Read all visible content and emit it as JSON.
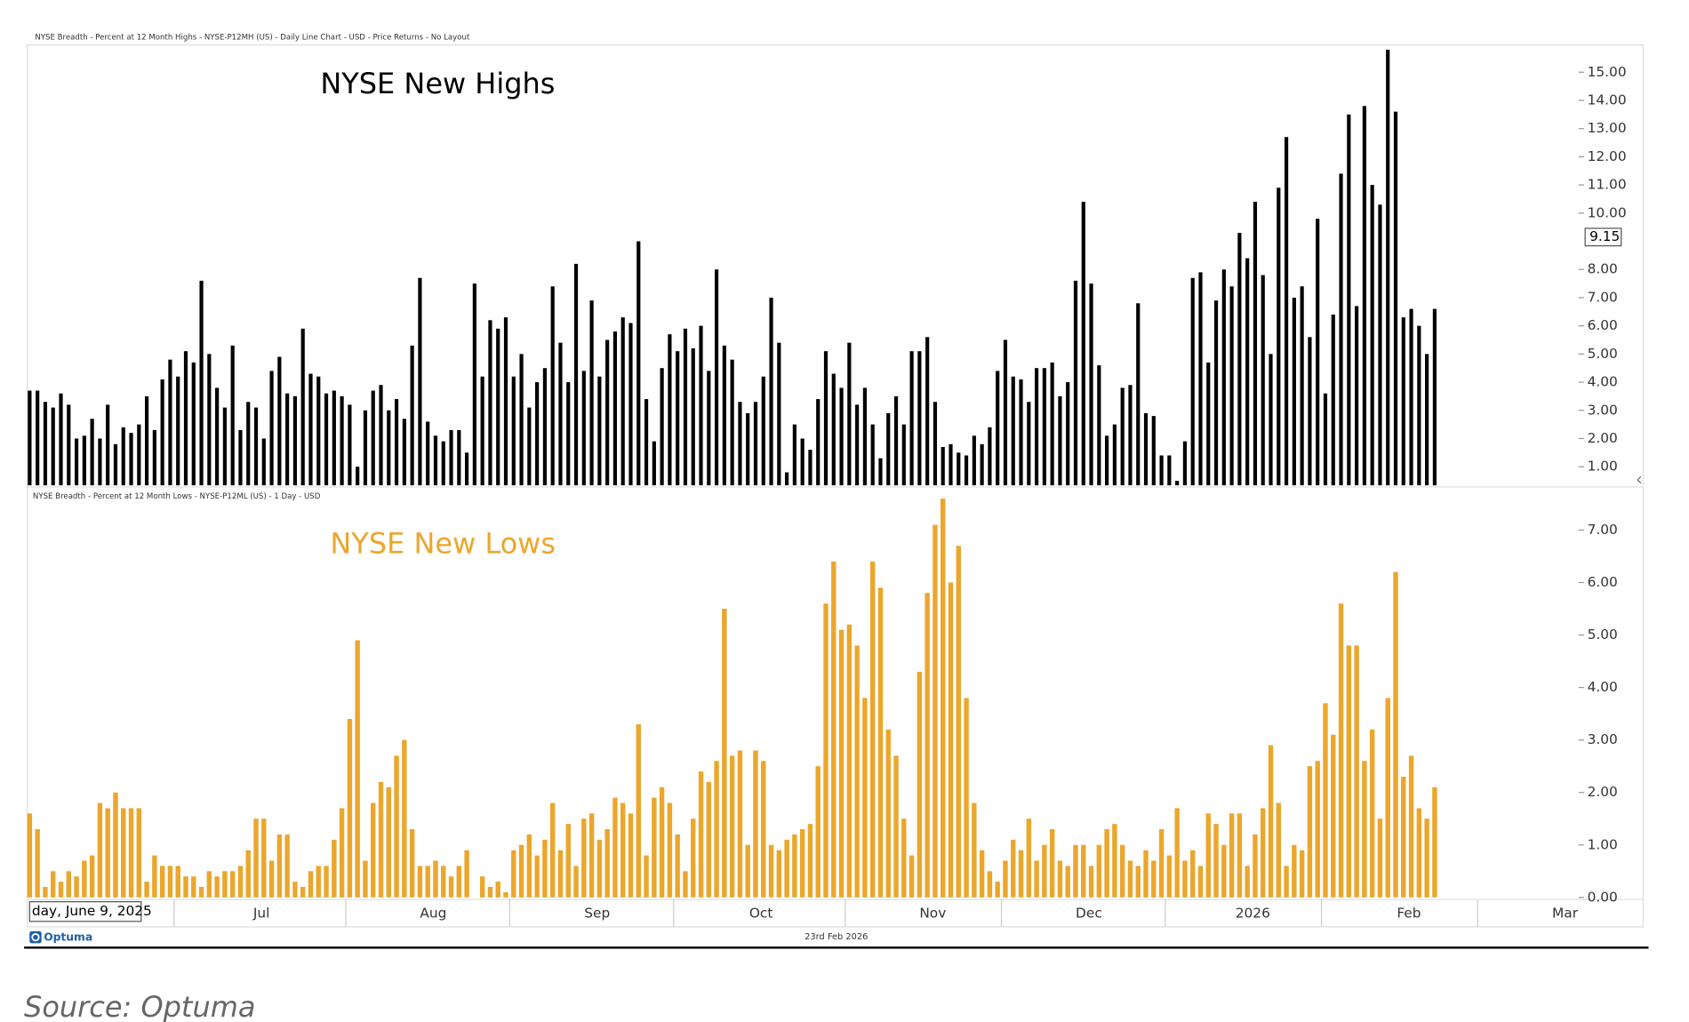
{
  "header": "NYSE Breadth - Percent at 12 Month Highs - NYSE-P12MH (US) - Daily Line Chart - USD - Price Returns - No Layout",
  "chart_data": [
    {
      "type": "bar",
      "title": "NYSE New Highs",
      "color": "#000000",
      "values": [
        3.7,
        3.7,
        3.3,
        3.1,
        3.6,
        3.2,
        2.0,
        2.1,
        2.7,
        2.0,
        3.2,
        1.8,
        2.4,
        2.2,
        2.5,
        3.5,
        2.3,
        4.1,
        4.8,
        4.2,
        5.1,
        4.7,
        7.6,
        5.0,
        3.8,
        3.1,
        5.3,
        2.3,
        3.3,
        3.1,
        2.0,
        4.4,
        4.9,
        3.6,
        3.5,
        5.9,
        4.3,
        4.2,
        3.6,
        3.7,
        3.5,
        3.2,
        1.0,
        3.0,
        3.7,
        3.9,
        3.0,
        3.4,
        2.7,
        5.3,
        7.7,
        2.6,
        2.1,
        1.9,
        2.3,
        2.3,
        1.5,
        7.5,
        4.2,
        6.2,
        5.9,
        6.3,
        4.2,
        5.0,
        3.1,
        4.0,
        4.5,
        7.4,
        5.4,
        4.0,
        8.2,
        4.4,
        6.9,
        4.2,
        5.5,
        5.8,
        6.3,
        6.1,
        9.0,
        3.4,
        1.9,
        4.5,
        5.7,
        5.1,
        5.9,
        5.2,
        6.0,
        4.4,
        8.0,
        5.3,
        4.8,
        3.3,
        2.9,
        3.3,
        4.2,
        7.0,
        5.4,
        0.8,
        2.5,
        2.0,
        1.6,
        3.4,
        5.1,
        4.3,
        3.8,
        5.4,
        3.2,
        3.8,
        2.5,
        1.3,
        2.9,
        3.5,
        2.5,
        5.1,
        5.1,
        5.6,
        3.3,
        1.7,
        1.8,
        1.5,
        1.4,
        2.1,
        1.8,
        2.4,
        4.4,
        5.5,
        4.2,
        4.1,
        3.3,
        4.5,
        4.5,
        4.7,
        3.5,
        4.0,
        7.6,
        10.4,
        7.5,
        4.6,
        2.1,
        2.5,
        3.8,
        3.9,
        6.8,
        2.9,
        2.8,
        1.4,
        1.4,
        0.5,
        1.9,
        7.7,
        7.9,
        4.7,
        6.9,
        8.0,
        7.4,
        9.3,
        8.4,
        10.4,
        7.8,
        5.0,
        10.9,
        12.7,
        7.0,
        7.4,
        5.6,
        9.8,
        3.6,
        6.4,
        11.4,
        13.5,
        6.7,
        13.8,
        11.0,
        10.3,
        15.8,
        13.6,
        6.3,
        6.6,
        6.0,
        5.0,
        6.6
      ],
      "xlim": [
        -0.3,
        206.7
      ],
      "ylim": [
        0.34,
        15.97
      ],
      "yticks": [
        {
          "value": 1,
          "label": "1.00"
        },
        {
          "value": 2,
          "label": "2.00"
        },
        {
          "value": 3,
          "label": "3.00"
        },
        {
          "value": 4,
          "label": "4.00"
        },
        {
          "value": 5,
          "label": "5.00"
        },
        {
          "value": 6,
          "label": "6.00"
        },
        {
          "value": 7,
          "label": "7.00"
        },
        {
          "value": 8,
          "label": "8.00"
        },
        {
          "value": 10,
          "label": "10.00"
        },
        {
          "value": 11,
          "label": "11.00"
        },
        {
          "value": 12,
          "label": "12.00"
        },
        {
          "value": 13,
          "label": "13.00"
        },
        {
          "value": 14,
          "label": "14.00"
        },
        {
          "value": 15,
          "label": "15.00"
        }
      ],
      "last_marker": 9.15
    },
    {
      "type": "bar",
      "subtitle": "NYSE Breadth - Percent at 12 Month Lows - NYSE-P12ML (US) - 1 Day - USD",
      "title": "NYSE New Lows",
      "color": "#eba62c",
      "values": [
        1.6,
        1.3,
        0.2,
        0.5,
        0.3,
        0.5,
        0.4,
        0.7,
        0.8,
        1.8,
        1.7,
        2.0,
        1.7,
        1.7,
        1.7,
        0.3,
        0.8,
        0.6,
        0.6,
        0.6,
        0.4,
        0.4,
        0.2,
        0.5,
        0.4,
        0.5,
        0.5,
        0.6,
        0.9,
        1.5,
        1.5,
        0.7,
        1.2,
        1.2,
        0.3,
        0.2,
        0.5,
        0.6,
        0.6,
        1.1,
        1.7,
        3.4,
        4.9,
        0.7,
        1.8,
        2.2,
        2.1,
        2.7,
        3.0,
        1.3,
        0.6,
        0.6,
        0.7,
        0.6,
        0.4,
        0.6,
        0.9,
        0.0,
        0.4,
        0.2,
        0.3,
        0.1,
        0.9,
        1.0,
        1.2,
        0.8,
        1.1,
        1.8,
        0.9,
        1.4,
        0.6,
        1.5,
        1.6,
        1.1,
        1.3,
        1.9,
        1.8,
        1.6,
        3.3,
        0.8,
        1.9,
        2.1,
        1.8,
        1.2,
        0.5,
        1.5,
        2.4,
        2.2,
        2.6,
        5.5,
        2.7,
        2.8,
        1.0,
        2.8,
        2.6,
        1.0,
        0.9,
        1.1,
        1.2,
        1.3,
        1.4,
        2.5,
        5.6,
        6.4,
        5.1,
        5.2,
        4.8,
        3.8,
        6.4,
        5.9,
        3.2,
        2.7,
        1.5,
        0.8,
        4.3,
        5.8,
        7.1,
        7.6,
        6.0,
        6.7,
        3.8,
        1.8,
        0.9,
        0.5,
        0.3,
        0.7,
        1.1,
        0.9,
        1.5,
        0.7,
        1.0,
        1.3,
        0.7,
        0.6,
        1.0,
        1.0,
        0.6,
        1.0,
        1.3,
        1.4,
        1.0,
        0.7,
        0.6,
        0.9,
        0.7,
        1.3,
        0.8,
        1.7,
        0.7,
        0.9,
        0.6,
        1.6,
        1.4,
        1.0,
        1.6,
        1.6,
        0.6,
        1.2,
        1.7,
        2.9,
        1.8,
        0.6,
        1.0,
        0.9,
        2.5,
        2.6,
        3.7,
        3.1,
        5.6,
        4.8,
        4.8,
        2.6,
        3.2,
        1.5,
        3.8,
        6.2,
        2.3,
        2.7,
        1.7,
        1.5,
        2.1
      ],
      "xlim": [
        -0.3,
        206.7
      ],
      "ylim": [
        -0.04,
        7.79
      ],
      "yticks": [
        {
          "value": 0,
          "label": "0.00"
        },
        {
          "value": 1,
          "label": "1.00"
        },
        {
          "value": 2,
          "label": "2.00"
        },
        {
          "value": 3,
          "label": "3.00"
        },
        {
          "value": 4,
          "label": "4.00"
        },
        {
          "value": 5,
          "label": "5.00"
        },
        {
          "value": 6,
          "label": "6.00"
        },
        {
          "value": 7,
          "label": "7.00"
        }
      ],
      "xticks": [
        {
          "value": 0,
          "label": "day, June 9, 2025"
        },
        {
          "value": 19,
          "label": "Jul"
        },
        {
          "value": 41,
          "label": "Aug"
        },
        {
          "value": 62,
          "label": "Sep"
        },
        {
          "value": 83,
          "label": "Oct"
        },
        {
          "value": 105,
          "label": "Nov"
        },
        {
          "value": 125,
          "label": "Dec"
        },
        {
          "value": 146,
          "label": "2026"
        },
        {
          "value": 166,
          "label": "Feb"
        },
        {
          "value": 186,
          "label": "Mar"
        }
      ]
    }
  ],
  "footer": {
    "logo": "Optuma",
    "date": "23rd Feb 2026"
  },
  "source": "Source: Optuma"
}
